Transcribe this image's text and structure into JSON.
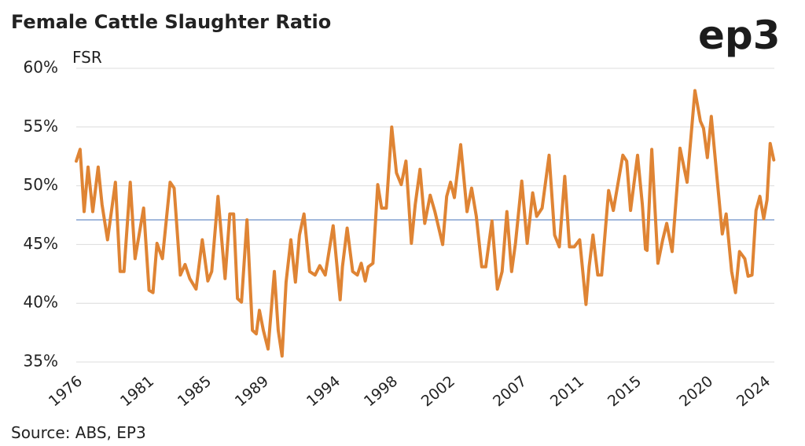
{
  "chart_data": {
    "type": "line",
    "title": "Female Cattle Slaughter Ratio",
    "y_label": "FSR",
    "source": "Source: ABS, EP3",
    "logo": "ep3",
    "xlim": [
      1976,
      2024.7
    ],
    "xticks": [
      1976,
      1981,
      1985,
      1989,
      1994,
      1998,
      2002,
      2007,
      2011,
      2015,
      2020,
      2024
    ],
    "ylim": [
      35,
      60
    ],
    "yticks": [
      {
        "value": 35,
        "label": "35%"
      },
      {
        "value": 40,
        "label": "40%"
      },
      {
        "value": 45,
        "label": "45%"
      },
      {
        "value": 50,
        "label": "50%"
      },
      {
        "value": 55,
        "label": "55%"
      },
      {
        "value": 60,
        "label": "60%"
      }
    ],
    "grid": true,
    "mean_line": {
      "value": 47.1,
      "color": "#6a8fc7"
    },
    "x": [
      1976.0,
      1976.27,
      1976.55,
      1976.82,
      1977.15,
      1977.53,
      1977.8,
      1978.18,
      1978.73,
      1979.06,
      1979.33,
      1979.77,
      1980.1,
      1980.7,
      1981.08,
      1981.35,
      1981.63,
      1982.01,
      1982.55,
      1982.83,
      1983.26,
      1983.59,
      1983.92,
      1984.36,
      1984.79,
      1985.18,
      1985.45,
      1985.89,
      1986.38,
      1986.71,
      1986.98,
      1987.25,
      1987.53,
      1987.91,
      1988.29,
      1988.56,
      1988.78,
      1989.05,
      1989.38,
      1989.82,
      1990.09,
      1990.36,
      1990.64,
      1990.97,
      1991.29,
      1991.57,
      1991.89,
      1992.28,
      1992.66,
      1992.99,
      1993.37,
      1993.92,
      1994.41,
      1994.57,
      1994.9,
      1995.28,
      1995.61,
      1995.88,
      1996.16,
      1996.37,
      1996.7,
      1997.03,
      1997.3,
      1997.63,
      1998.01,
      1998.34,
      1998.67,
      1999.0,
      1999.38,
      1999.65,
      1999.98,
      2000.31,
      2000.69,
      2001.02,
      2001.56,
      2001.84,
      2002.11,
      2002.38,
      2002.82,
      2003.26,
      2003.58,
      2003.91,
      2004.29,
      2004.57,
      2005.0,
      2005.38,
      2005.71,
      2006.04,
      2006.37,
      2006.64,
      2007.08,
      2007.46,
      2007.84,
      2008.12,
      2008.5,
      2008.99,
      2009.37,
      2009.7,
      2010.08,
      2010.41,
      2010.74,
      2011.12,
      2011.56,
      2011.78,
      2012.05,
      2012.38,
      2012.65,
      2013.14,
      2013.47,
      2014.13,
      2014.4,
      2014.67,
      2015.16,
      2015.49,
      2015.71,
      2015.82,
      2016.15,
      2016.58,
      2016.91,
      2017.19,
      2017.57,
      2018.12,
      2018.61,
      2019.16,
      2019.54,
      2019.76,
      2020.03,
      2020.3,
      2020.69,
      2021.07,
      2021.34,
      2021.72,
      2021.99,
      2022.27,
      2022.64,
      2022.87,
      2023.14,
      2023.42,
      2023.69,
      2023.96,
      2024.19,
      2024.41,
      2024.66
    ],
    "series": [
      {
        "name": "FSR",
        "color": "#df8434",
        "values": [
          52.1,
          53.1,
          47.8,
          51.6,
          47.8,
          51.6,
          48.4,
          45.4,
          50.3,
          42.7,
          42.7,
          50.3,
          43.8,
          48.1,
          41.1,
          40.9,
          45.1,
          43.8,
          50.3,
          49.8,
          42.4,
          43.3,
          42.1,
          41.2,
          45.4,
          41.9,
          42.7,
          49.1,
          42.1,
          47.6,
          47.6,
          40.4,
          40.1,
          47.1,
          37.7,
          37.4,
          39.4,
          37.7,
          36.1,
          42.7,
          37.7,
          35.5,
          41.8,
          45.4,
          41.8,
          45.8,
          47.6,
          42.7,
          42.4,
          43.2,
          42.4,
          46.6,
          40.3,
          43.1,
          46.4,
          42.7,
          42.4,
          43.4,
          41.9,
          43.1,
          43.4,
          50.1,
          48.1,
          48.1,
          55.0,
          51.1,
          50.1,
          52.1,
          45.1,
          48.4,
          51.4,
          46.8,
          49.2,
          47.8,
          45.0,
          49.1,
          50.3,
          49.0,
          53.5,
          47.8,
          49.8,
          47.4,
          43.1,
          43.1,
          47.0,
          41.2,
          42.7,
          47.8,
          42.7,
          45.1,
          50.4,
          45.1,
          49.4,
          47.4,
          48.1,
          52.6,
          45.8,
          44.8,
          50.8,
          44.8,
          44.8,
          45.4,
          39.9,
          43.1,
          45.8,
          42.4,
          42.4,
          49.6,
          47.9,
          52.6,
          52.1,
          47.9,
          52.6,
          48.4,
          44.6,
          44.5,
          53.1,
          43.4,
          45.4,
          46.8,
          44.4,
          53.2,
          50.3,
          58.1,
          55.5,
          54.9,
          52.4,
          55.9,
          50.8,
          45.9,
          47.6,
          42.7,
          40.9,
          44.4,
          43.8,
          42.3,
          42.4,
          47.9,
          49.1,
          47.2,
          48.8,
          53.6,
          52.2
        ]
      }
    ]
  }
}
